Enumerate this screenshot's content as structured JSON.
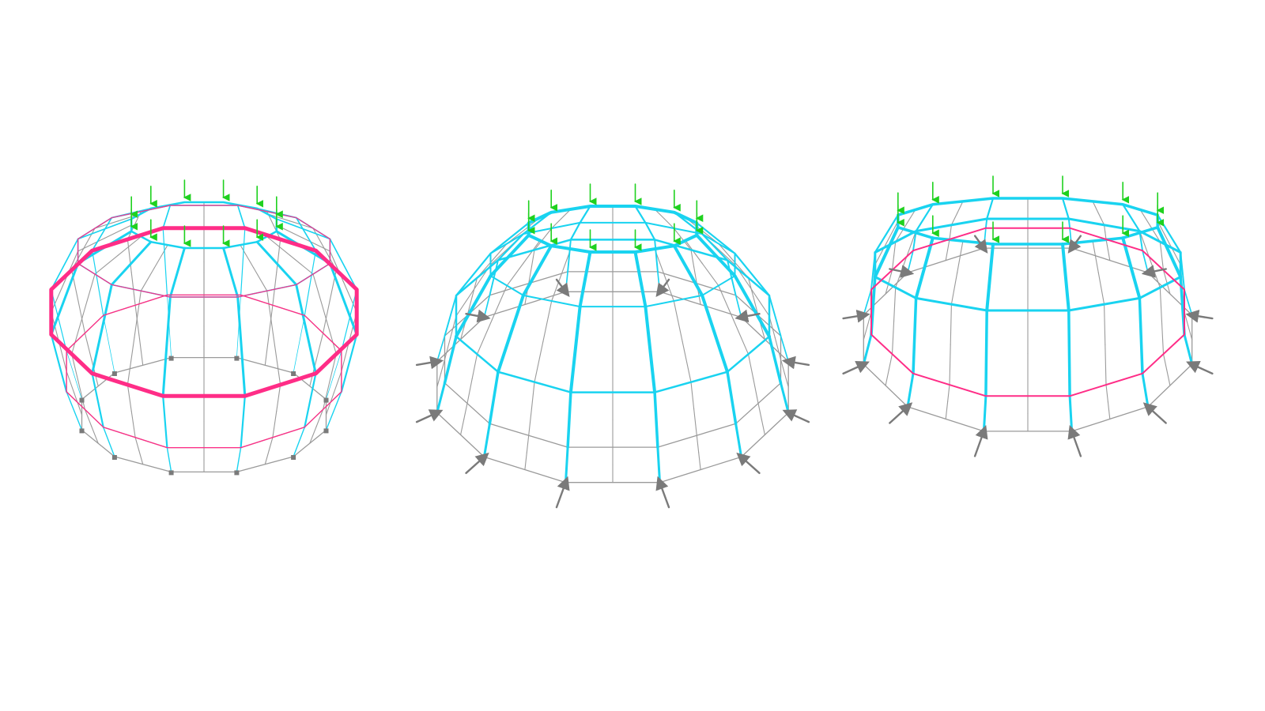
{
  "figure": {
    "panel_count": 3,
    "colors": {
      "background": "#ffffff",
      "compression_member": "#19d3f0",
      "tension_member": "#ff2d87",
      "unstressed_member": "#9a9a9a",
      "load_arrow": "#1fd11f",
      "support": "#7a7a7a"
    }
  },
  "panels": [
    {
      "name": "closed-dome",
      "polygon_sides": 12,
      "load_arrows": 12,
      "support_type": "bearing",
      "tension_ring": "bold-middle"
    },
    {
      "name": "open-dome",
      "polygon_sides": 12,
      "load_arrows": 12,
      "support_type": "splayed",
      "tension_ring": "none"
    },
    {
      "name": "flared-dome",
      "polygon_sides": 12,
      "load_arrows": 12,
      "support_type": "splayed",
      "tension_ring": "outer-thin"
    }
  ]
}
